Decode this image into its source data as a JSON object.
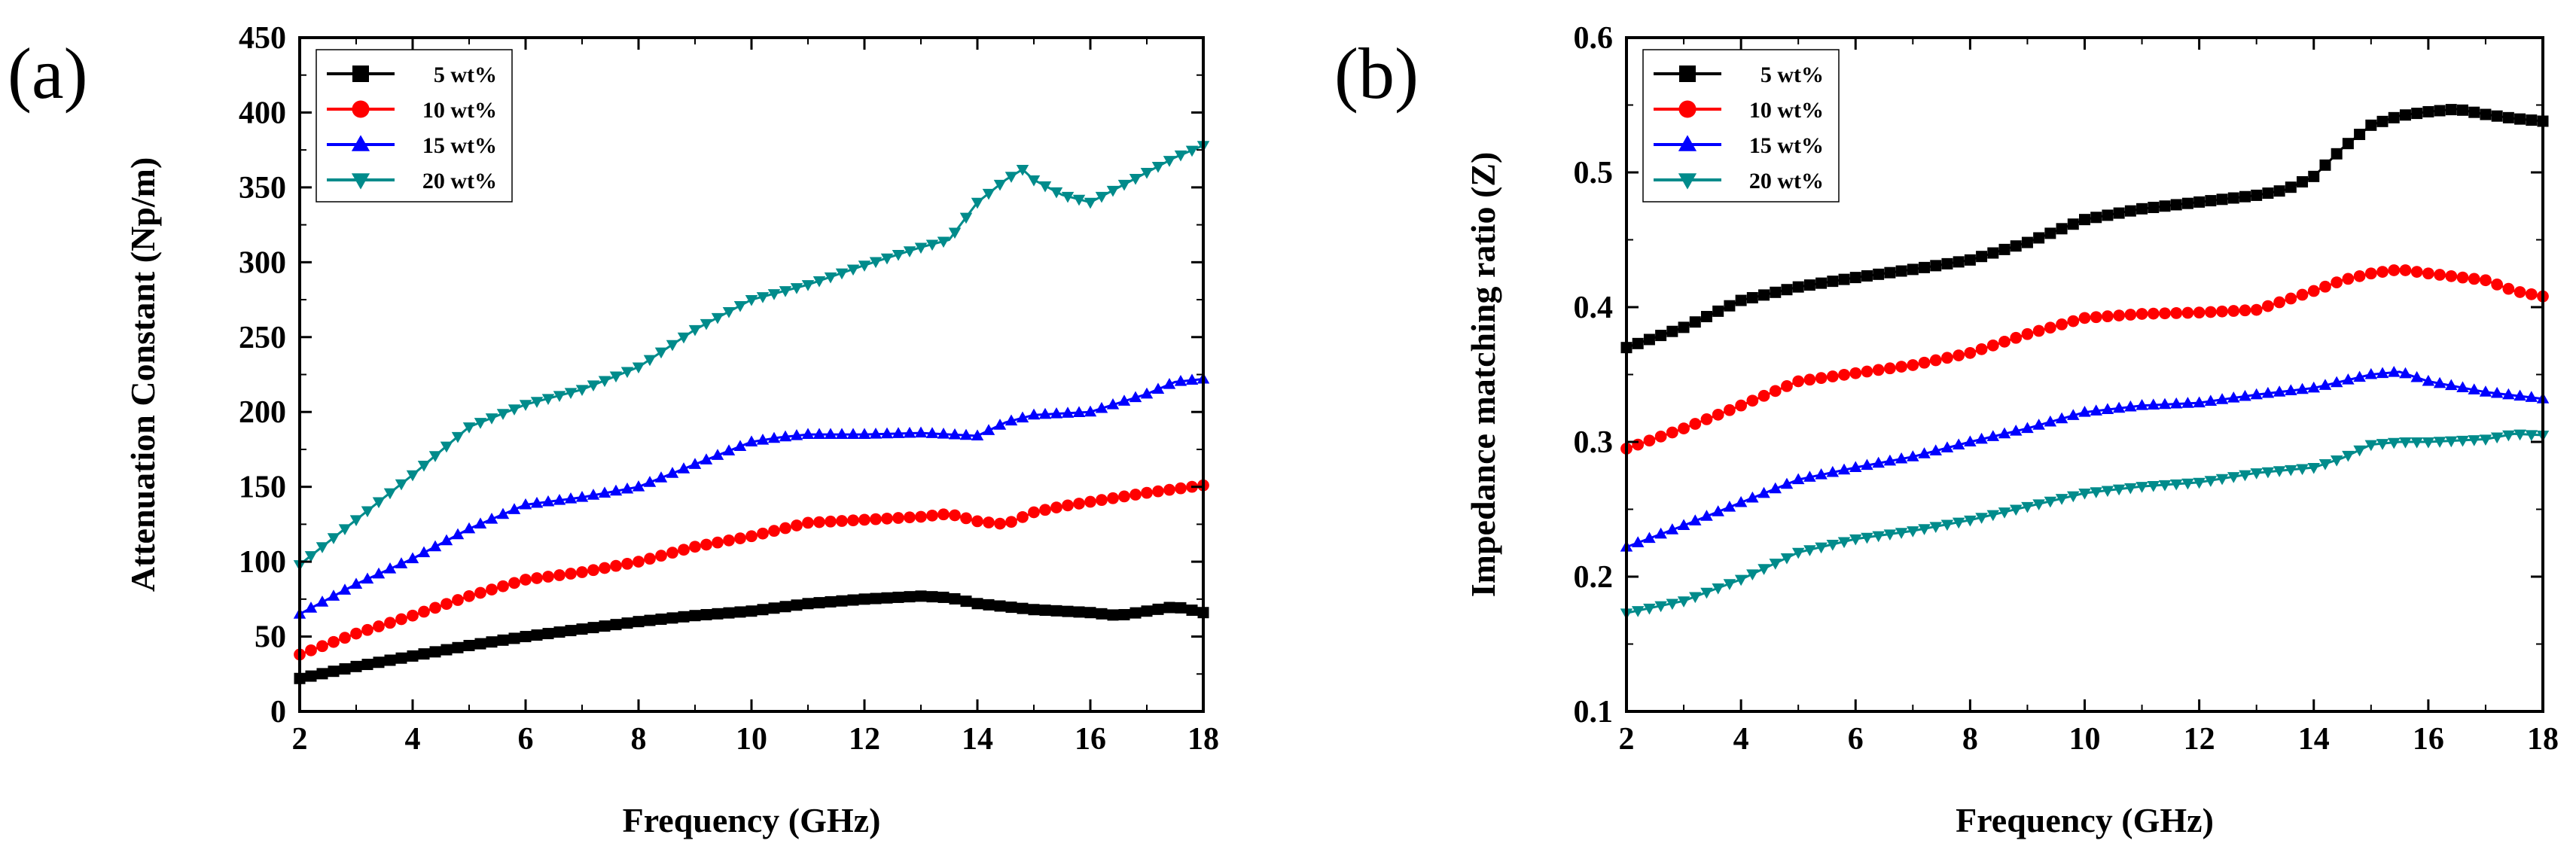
{
  "figure": {
    "panel_labels": [
      "(a)",
      "(b)"
    ]
  },
  "colors": {
    "5 wt%": "#000000",
    "10 wt%": "#ff0000",
    "15 wt%": "#0000ff",
    "20 wt%": "#008b8b"
  },
  "markers": {
    "5 wt%": "square",
    "10 wt%": "circle",
    "15 wt%": "triangle-up",
    "20 wt%": "triangle-down"
  },
  "chart_data": [
    {
      "type": "line",
      "panel": "(a)",
      "xlabel": "Frequency (GHz)",
      "ylabel": "Attenuation Constant (Np/m)",
      "xlim": [
        2,
        18
      ],
      "ylim": [
        0,
        450
      ],
      "xticks": [
        2,
        4,
        6,
        8,
        10,
        12,
        14,
        16,
        18
      ],
      "yticks": [
        0,
        50,
        100,
        150,
        200,
        250,
        300,
        350,
        400,
        450
      ],
      "legend": [
        "5 wt%",
        "10 wt%",
        "15 wt%",
        "20 wt%"
      ],
      "legend_location": "top-left",
      "series": [
        {
          "name": "5 wt%",
          "x": [
            2,
            3,
            4,
            5,
            6,
            7,
            8,
            9,
            10,
            11,
            12,
            13,
            13.5,
            14,
            14.5,
            15,
            15.5,
            16,
            16.5,
            17,
            17.5,
            18
          ],
          "values": [
            22,
            30,
            37,
            44,
            50,
            55,
            60,
            64,
            67,
            72,
            75,
            77,
            76,
            72,
            70,
            68,
            67,
            66,
            64,
            67,
            70,
            66
          ]
        },
        {
          "name": "10 wt%",
          "x": [
            2,
            3,
            4,
            5,
            6,
            7,
            8,
            9,
            10,
            11,
            12,
            13,
            13.5,
            14,
            14.5,
            15,
            15.5,
            16,
            17,
            18
          ],
          "values": [
            38,
            52,
            64,
            77,
            88,
            93,
            100,
            110,
            117,
            126,
            128,
            130,
            132,
            127,
            125,
            133,
            137,
            140,
            146,
            151
          ]
        },
        {
          "name": "15 wt%",
          "x": [
            2,
            3,
            4,
            5,
            6,
            7,
            8,
            9,
            10,
            10.5,
            11,
            12,
            13,
            14,
            14.5,
            15,
            16,
            17,
            17.5,
            18
          ],
          "values": [
            65,
            85,
            102,
            122,
            138,
            143,
            150,
            165,
            180,
            183,
            185,
            185,
            186,
            184,
            193,
            198,
            200,
            212,
            220,
            222
          ]
        },
        {
          "name": "20 wt%",
          "x": [
            2,
            3,
            4,
            5,
            6,
            7,
            8,
            9,
            10,
            11,
            12,
            13,
            13.5,
            14,
            14.5,
            14.8,
            15,
            15.5,
            16,
            17,
            17.5,
            18
          ],
          "values": [
            98,
            128,
            158,
            190,
            205,
            215,
            230,
            255,
            275,
            285,
            298,
            310,
            315,
            340,
            355,
            362,
            355,
            345,
            340,
            360,
            370,
            378
          ]
        }
      ]
    },
    {
      "type": "line",
      "panel": "(b)",
      "xlabel": "Frequency (GHz)",
      "ylabel": "Impedance matching ratio (Z)",
      "xlim": [
        2,
        18
      ],
      "ylim": [
        0.1,
        0.6
      ],
      "xticks": [
        2,
        4,
        6,
        8,
        10,
        12,
        14,
        16,
        18
      ],
      "yticks": [
        0.1,
        0.2,
        0.3,
        0.4,
        0.5,
        0.6
      ],
      "legend": [
        "5 wt%",
        "10 wt%",
        "15 wt%",
        "20 wt%"
      ],
      "legend_location": "top-left",
      "series": [
        {
          "name": "5 wt%",
          "x": [
            2,
            3,
            4,
            5,
            6,
            7,
            8,
            9,
            10,
            11,
            12,
            13,
            13.5,
            14,
            14.5,
            15,
            15.5,
            16,
            16.5,
            17,
            17.5,
            18
          ],
          "values": [
            0.37,
            0.385,
            0.405,
            0.415,
            0.422,
            0.428,
            0.435,
            0.448,
            0.465,
            0.473,
            0.478,
            0.483,
            0.487,
            0.497,
            0.518,
            0.535,
            0.542,
            0.545,
            0.547,
            0.543,
            0.54,
            0.538
          ]
        },
        {
          "name": "10 wt%",
          "x": [
            2,
            3,
            4,
            5,
            6,
            7,
            8,
            9,
            10,
            11,
            12,
            13,
            14,
            14.5,
            15,
            15.5,
            16,
            17,
            17.5,
            18
          ],
          "values": [
            0.295,
            0.31,
            0.327,
            0.345,
            0.351,
            0.357,
            0.366,
            0.38,
            0.392,
            0.395,
            0.396,
            0.398,
            0.412,
            0.42,
            0.425,
            0.428,
            0.425,
            0.42,
            0.412,
            0.408
          ]
        },
        {
          "name": "15 wt%",
          "x": [
            2,
            3,
            4,
            5,
            6,
            7,
            8,
            9,
            10,
            11,
            12,
            13,
            14,
            14.5,
            15,
            15.5,
            16,
            17,
            18
          ],
          "values": [
            0.222,
            0.238,
            0.255,
            0.272,
            0.281,
            0.289,
            0.3,
            0.31,
            0.322,
            0.327,
            0.329,
            0.335,
            0.34,
            0.345,
            0.35,
            0.352,
            0.345,
            0.337,
            0.332
          ]
        },
        {
          "name": "20 wt%",
          "x": [
            2,
            3,
            4,
            5,
            6,
            7,
            8,
            9,
            10,
            11,
            12,
            13,
            14,
            14.5,
            15,
            15.5,
            16,
            17,
            17.5,
            18
          ],
          "values": [
            0.173,
            0.182,
            0.198,
            0.218,
            0.228,
            0.234,
            0.242,
            0.252,
            0.262,
            0.267,
            0.27,
            0.277,
            0.281,
            0.288,
            0.298,
            0.3,
            0.3,
            0.302,
            0.306,
            0.305
          ]
        }
      ]
    }
  ]
}
